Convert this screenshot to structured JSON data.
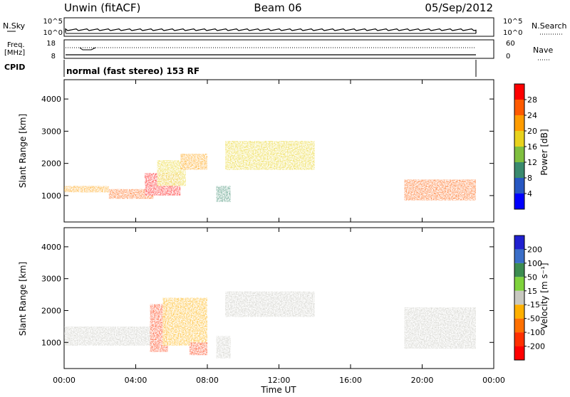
{
  "header": {
    "site": "Unwin (fitACF)",
    "beam": "Beam 06",
    "date": "05/Sep/2012"
  },
  "top_panels": {
    "nsky_label": "N.Sky",
    "nsky_ticks": [
      "10^5",
      "10^0"
    ],
    "nsky_right_ticks": [
      "10^5",
      "10^0"
    ],
    "nsearch_label": "N.Search",
    "freq_label_1": "Freq.",
    "freq_label_2": "[MHz]",
    "freq_ticks": [
      "18",
      "8"
    ],
    "nave_ticks": [
      "60",
      "0"
    ],
    "nave_label": "Nave",
    "cpid_label": "CPID",
    "cpid_text": "normal (fast stereo) 153 RF"
  },
  "chart_data": [
    {
      "type": "heatmap",
      "title": "",
      "xlabel": "",
      "ylabel": "Slant Range [km]",
      "yticks": [
        "1000",
        "2000",
        "3000",
        "4000"
      ],
      "xlim": [
        0,
        24
      ],
      "ylim": [
        180,
        4600
      ],
      "colorbar": {
        "label": "Power [dB]",
        "ticks": [
          "4",
          "8",
          "12",
          "16",
          "20",
          "24",
          "28"
        ],
        "colors": [
          "#0000ff",
          "#2757c2",
          "#3a8a6e",
          "#7fbf3f",
          "#e8d21d",
          "#ff9c00",
          "#ff5a00",
          "#ff0000"
        ]
      },
      "features": [
        {
          "time": [
            0.0,
            2.5
          ],
          "range": [
            1100,
            1300
          ],
          "power": 20
        },
        {
          "time": [
            2.5,
            5.0
          ],
          "range": [
            900,
            1200
          ],
          "power": 24
        },
        {
          "time": [
            4.5,
            6.5
          ],
          "range": [
            1000,
            1700
          ],
          "power": 28
        },
        {
          "time": [
            5.2,
            6.8
          ],
          "range": [
            1300,
            2100
          ],
          "power": 16
        },
        {
          "time": [
            6.5,
            8.0
          ],
          "range": [
            1800,
            2300
          ],
          "power": 20
        },
        {
          "time": [
            8.5,
            9.3
          ],
          "range": [
            800,
            1300
          ],
          "power": 8
        },
        {
          "time": [
            9.0,
            14.0
          ],
          "range": [
            1800,
            2700
          ],
          "power": 16
        },
        {
          "time": [
            19.0,
            23.0
          ],
          "range": [
            850,
            1500
          ],
          "power": 24
        }
      ]
    },
    {
      "type": "heatmap",
      "title": "",
      "xlabel": "Time UT",
      "ylabel": "Slant Range [km]",
      "xticks": [
        "00:00",
        "04:00",
        "08:00",
        "12:00",
        "16:00",
        "20:00",
        "00:00"
      ],
      "yticks": [
        "1000",
        "2000",
        "3000",
        "4000"
      ],
      "xlim": [
        0,
        24
      ],
      "ylim": [
        180,
        4600
      ],
      "colorbar": {
        "label": "Velocity [m s⁻¹]",
        "ticks": [
          "200",
          "100",
          "50",
          "15",
          "-15",
          "-50",
          "-100",
          "-200"
        ],
        "colors": [
          "#2020d0",
          "#3a6ec8",
          "#3c8c50",
          "#7fd23c",
          "#c8c8c0",
          "#ffb000",
          "#ff7000",
          "#ff3000",
          "#ff0000"
        ]
      },
      "features": [
        {
          "time": [
            0.0,
            5.0
          ],
          "range": [
            900,
            1500
          ],
          "velocity": 0
        },
        {
          "time": [
            4.8,
            5.8
          ],
          "range": [
            700,
            2200
          ],
          "velocity": -200
        },
        {
          "time": [
            5.5,
            8.0
          ],
          "range": [
            900,
            2400
          ],
          "velocity": -50
        },
        {
          "time": [
            7.0,
            8.0
          ],
          "range": [
            600,
            1000
          ],
          "velocity": -200
        },
        {
          "time": [
            8.5,
            9.3
          ],
          "range": [
            500,
            1200
          ],
          "velocity": 0
        },
        {
          "time": [
            9.0,
            14.0
          ],
          "range": [
            1800,
            2600
          ],
          "velocity": 0
        },
        {
          "time": [
            19.0,
            23.0
          ],
          "range": [
            800,
            2100
          ],
          "velocity": 0
        }
      ]
    }
  ]
}
